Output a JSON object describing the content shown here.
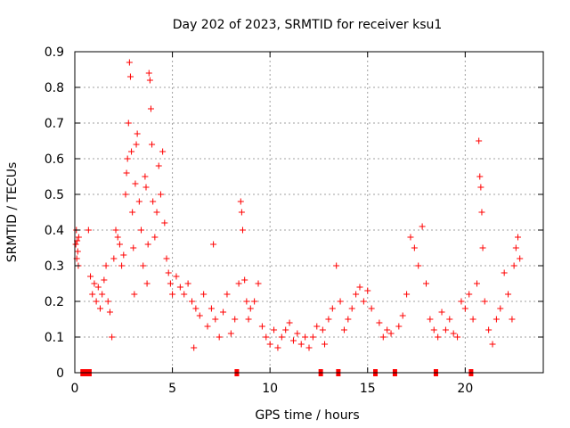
{
  "chart_data": {
    "type": "scatter",
    "title": "Day 202 of 2023, SRMTID for receiver ksu1",
    "xlabel": "GPS time / hours",
    "ylabel": "SRMTID / TECUs",
    "xlim": [
      0,
      24
    ],
    "ylim": [
      0,
      0.9
    ],
    "x_ticks": [
      0,
      5,
      10,
      15,
      20
    ],
    "y_ticks": [
      0,
      0.1,
      0.2,
      0.3,
      0.4,
      0.5,
      0.6,
      0.7,
      0.8,
      0.9
    ],
    "x_tick_labels": [
      "0",
      "5",
      "10",
      "15",
      "20"
    ],
    "y_tick_labels": [
      "0",
      "0.1",
      "0.2",
      "0.3",
      "0.4",
      "0.5",
      "0.6",
      "0.7",
      "0.8",
      "0.9"
    ],
    "grid": true,
    "marker": "+",
    "series": [
      {
        "name": "SRMTID",
        "color": "#ff0000",
        "values": [
          [
            0.05,
            0.36
          ],
          [
            0.08,
            0.4
          ],
          [
            0.1,
            0.32
          ],
          [
            0.12,
            0.37
          ],
          [
            0.15,
            0.34
          ],
          [
            0.18,
            0.3
          ],
          [
            0.2,
            0.38
          ],
          [
            0.4,
            0.0
          ],
          [
            0.6,
            0.0
          ],
          [
            0.7,
            0.4
          ],
          [
            0.75,
            0.0
          ],
          [
            0.8,
            0.27
          ],
          [
            0.9,
            0.22
          ],
          [
            1.0,
            0.25
          ],
          [
            1.1,
            0.2
          ],
          [
            1.2,
            0.24
          ],
          [
            1.3,
            0.18
          ],
          [
            1.4,
            0.22
          ],
          [
            1.5,
            0.26
          ],
          [
            1.6,
            0.3
          ],
          [
            1.7,
            0.2
          ],
          [
            1.8,
            0.17
          ],
          [
            1.9,
            0.1
          ],
          [
            2.0,
            0.32
          ],
          [
            2.1,
            0.4
          ],
          [
            2.2,
            0.38
          ],
          [
            2.3,
            0.36
          ],
          [
            2.4,
            0.3
          ],
          [
            2.5,
            0.33
          ],
          [
            2.6,
            0.5
          ],
          [
            2.65,
            0.56
          ],
          [
            2.7,
            0.6
          ],
          [
            2.75,
            0.7
          ],
          [
            2.8,
            0.87
          ],
          [
            2.85,
            0.83
          ],
          [
            2.9,
            0.62
          ],
          [
            2.95,
            0.45
          ],
          [
            3.0,
            0.35
          ],
          [
            3.05,
            0.22
          ],
          [
            3.1,
            0.53
          ],
          [
            3.15,
            0.64
          ],
          [
            3.2,
            0.67
          ],
          [
            3.3,
            0.48
          ],
          [
            3.4,
            0.4
          ],
          [
            3.5,
            0.3
          ],
          [
            3.6,
            0.55
          ],
          [
            3.65,
            0.52
          ],
          [
            3.7,
            0.25
          ],
          [
            3.75,
            0.36
          ],
          [
            3.8,
            0.84
          ],
          [
            3.85,
            0.82
          ],
          [
            3.9,
            0.74
          ],
          [
            3.95,
            0.64
          ],
          [
            4.0,
            0.48
          ],
          [
            4.1,
            0.38
          ],
          [
            4.2,
            0.45
          ],
          [
            4.3,
            0.58
          ],
          [
            4.4,
            0.5
          ],
          [
            4.5,
            0.62
          ],
          [
            4.6,
            0.42
          ],
          [
            4.7,
            0.32
          ],
          [
            4.8,
            0.28
          ],
          [
            4.9,
            0.25
          ],
          [
            5.0,
            0.22
          ],
          [
            5.2,
            0.27
          ],
          [
            5.4,
            0.24
          ],
          [
            5.6,
            0.22
          ],
          [
            5.8,
            0.25
          ],
          [
            6.0,
            0.2
          ],
          [
            6.1,
            0.07
          ],
          [
            6.2,
            0.18
          ],
          [
            6.4,
            0.16
          ],
          [
            6.6,
            0.22
          ],
          [
            6.8,
            0.13
          ],
          [
            7.0,
            0.18
          ],
          [
            7.1,
            0.36
          ],
          [
            7.2,
            0.15
          ],
          [
            7.4,
            0.1
          ],
          [
            7.6,
            0.17
          ],
          [
            7.8,
            0.22
          ],
          [
            8.0,
            0.11
          ],
          [
            8.2,
            0.15
          ],
          [
            8.3,
            0.0
          ],
          [
            8.4,
            0.25
          ],
          [
            8.5,
            0.48
          ],
          [
            8.55,
            0.45
          ],
          [
            8.6,
            0.4
          ],
          [
            8.7,
            0.26
          ],
          [
            8.8,
            0.2
          ],
          [
            8.9,
            0.15
          ],
          [
            9.0,
            0.18
          ],
          [
            9.2,
            0.2
          ],
          [
            9.4,
            0.25
          ],
          [
            9.6,
            0.13
          ],
          [
            9.8,
            0.1
          ],
          [
            10.0,
            0.08
          ],
          [
            10.2,
            0.12
          ],
          [
            10.4,
            0.07
          ],
          [
            10.6,
            0.1
          ],
          [
            10.8,
            0.12
          ],
          [
            11.0,
            0.14
          ],
          [
            11.2,
            0.09
          ],
          [
            11.4,
            0.11
          ],
          [
            11.6,
            0.08
          ],
          [
            11.8,
            0.1
          ],
          [
            12.0,
            0.07
          ],
          [
            12.2,
            0.1
          ],
          [
            12.4,
            0.13
          ],
          [
            12.6,
            0.0
          ],
          [
            12.7,
            0.12
          ],
          [
            12.8,
            0.08
          ],
          [
            13.0,
            0.15
          ],
          [
            13.2,
            0.18
          ],
          [
            13.4,
            0.3
          ],
          [
            13.5,
            0.0
          ],
          [
            13.6,
            0.2
          ],
          [
            13.8,
            0.12
          ],
          [
            14.0,
            0.15
          ],
          [
            14.2,
            0.18
          ],
          [
            14.4,
            0.22
          ],
          [
            14.6,
            0.24
          ],
          [
            14.8,
            0.2
          ],
          [
            15.0,
            0.23
          ],
          [
            15.2,
            0.18
          ],
          [
            15.4,
            0.0
          ],
          [
            15.6,
            0.14
          ],
          [
            15.8,
            0.1
          ],
          [
            16.0,
            0.12
          ],
          [
            16.2,
            0.11
          ],
          [
            16.4,
            0.0
          ],
          [
            16.6,
            0.13
          ],
          [
            16.8,
            0.16
          ],
          [
            17.0,
            0.22
          ],
          [
            17.2,
            0.38
          ],
          [
            17.4,
            0.35
          ],
          [
            17.6,
            0.3
          ],
          [
            17.8,
            0.41
          ],
          [
            18.0,
            0.25
          ],
          [
            18.2,
            0.15
          ],
          [
            18.4,
            0.12
          ],
          [
            18.5,
            0.0
          ],
          [
            18.6,
            0.1
          ],
          [
            18.8,
            0.17
          ],
          [
            19.0,
            0.12
          ],
          [
            19.2,
            0.15
          ],
          [
            19.4,
            0.11
          ],
          [
            19.6,
            0.1
          ],
          [
            19.8,
            0.2
          ],
          [
            20.0,
            0.18
          ],
          [
            20.2,
            0.22
          ],
          [
            20.3,
            0.0
          ],
          [
            20.4,
            0.15
          ],
          [
            20.6,
            0.25
          ],
          [
            20.7,
            0.65
          ],
          [
            20.75,
            0.55
          ],
          [
            20.8,
            0.52
          ],
          [
            20.85,
            0.45
          ],
          [
            20.9,
            0.35
          ],
          [
            21.0,
            0.2
          ],
          [
            21.2,
            0.12
          ],
          [
            21.4,
            0.08
          ],
          [
            21.6,
            0.15
          ],
          [
            21.8,
            0.18
          ],
          [
            22.0,
            0.28
          ],
          [
            22.2,
            0.22
          ],
          [
            22.4,
            0.15
          ],
          [
            22.5,
            0.3
          ],
          [
            22.6,
            0.35
          ],
          [
            22.7,
            0.38
          ],
          [
            22.8,
            0.32
          ]
        ]
      }
    ]
  }
}
